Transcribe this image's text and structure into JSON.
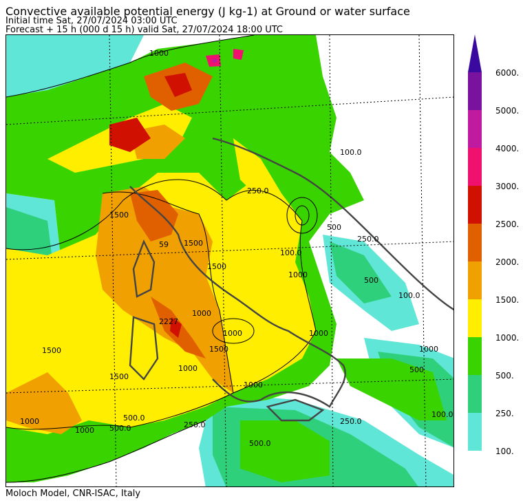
{
  "header": {
    "title": "Convective available potential energy (J kg-1) at Ground or water surface",
    "initial_time": "Initial time  Sat, 27/07/2024  03:00 UTC",
    "forecast": "Forecast  +  15 h  (000 d 15 h)  valid Sat, 27/07/2024 18:00 UTC"
  },
  "footer": {
    "credit": "Moloch Model, CNR-ISAC, Italy"
  },
  "legend": {
    "arrow_color": "#3a0aa0",
    "levels": [
      {
        "label": "100.",
        "color": "#5fe6d6"
      },
      {
        "label": "250.",
        "color": "#2fd07c"
      },
      {
        "label": "500.",
        "color": "#39d400"
      },
      {
        "label": "1000.",
        "color": "#ffee00"
      },
      {
        "label": "1500.",
        "color": "#f0a000"
      },
      {
        "label": "2000.",
        "color": "#e06000"
      },
      {
        "label": "2500.",
        "color": "#d01000"
      },
      {
        "label": "3000.",
        "color": "#f0106e"
      },
      {
        "label": "4000.",
        "color": "#c01aa0"
      },
      {
        "label": "5000.",
        "color": "#7a12a0"
      },
      {
        "label": "6000.",
        "color": "#3a0aa0"
      }
    ]
  },
  "contour_labels": [
    "1000",
    "1500",
    "1500",
    "1000",
    "2227",
    "59",
    "1500",
    "1000",
    "1500",
    "1000",
    "1000",
    "500.0",
    "250.0",
    "500.0",
    "250.0",
    "100.0",
    "250.0",
    "500",
    "1000",
    "100.0",
    "500",
    "100.0",
    "500",
    "1000",
    "250.0",
    "100.0",
    "1000",
    "500.0",
    "1000",
    "1500",
    "1500",
    "1000"
  ]
}
